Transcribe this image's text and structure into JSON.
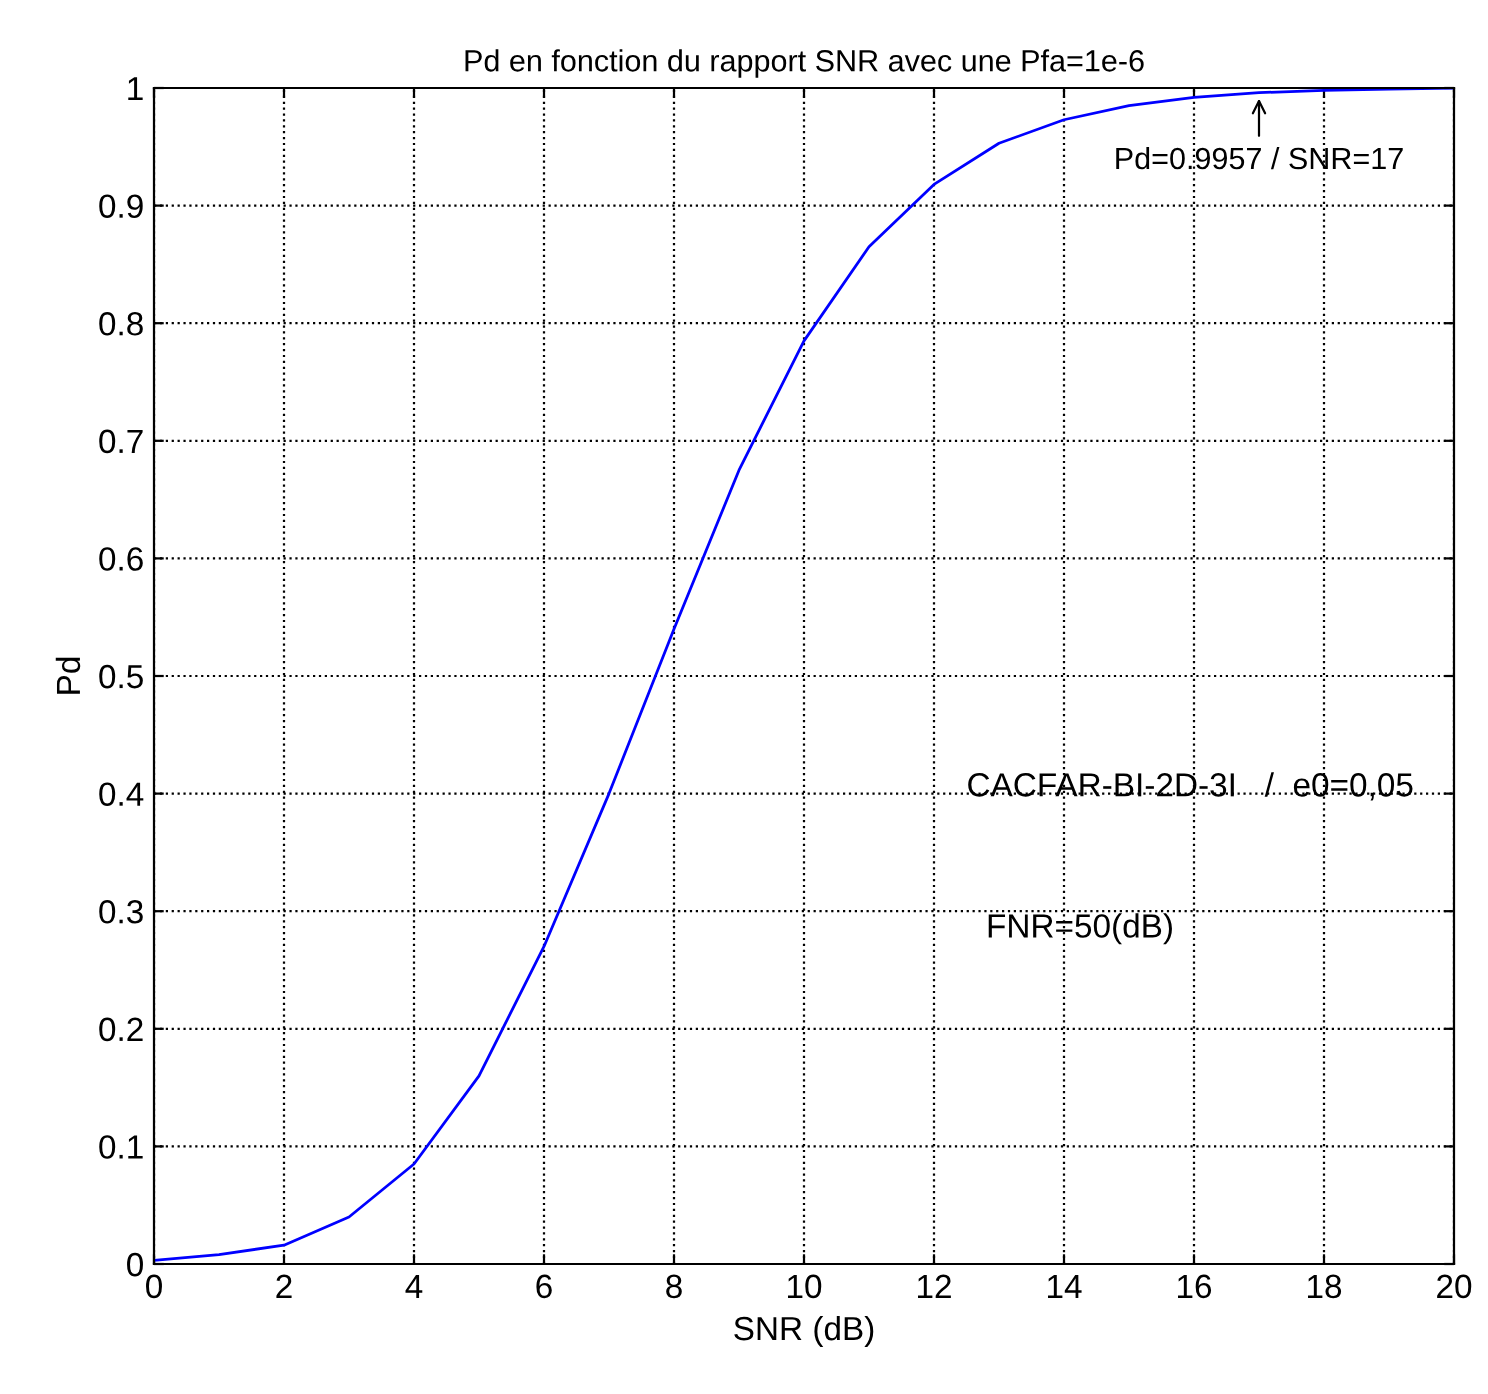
{
  "chart_data": {
    "type": "line",
    "title": "Pd en fonction du rapport SNR avec une Pfa=1e-6",
    "xlabel": "SNR (dB)",
    "ylabel": "Pd",
    "x": [
      0,
      1,
      2,
      3,
      4,
      5,
      6,
      7,
      8,
      9,
      10,
      11,
      12,
      13,
      14,
      15,
      16,
      17,
      18,
      19,
      20
    ],
    "series": [
      {
        "color": "#0000ff",
        "values": [
          0.003,
          0.008,
          0.016,
          0.04,
          0.085,
          0.16,
          0.27,
          0.4,
          0.54,
          0.675,
          0.785,
          0.865,
          0.918,
          0.953,
          0.973,
          0.985,
          0.992,
          0.996,
          0.998,
          0.999,
          1.0
        ]
      }
    ],
    "xlim": [
      0,
      20
    ],
    "xticks": [
      0,
      2,
      4,
      6,
      8,
      10,
      12,
      14,
      16,
      18,
      20
    ],
    "ylim": [
      0,
      1
    ],
    "yticks": [
      0,
      0.1,
      0.2,
      0.3,
      0.4,
      0.5,
      0.6,
      0.7,
      0.8,
      0.9,
      1
    ],
    "grid": true,
    "line_style": "solid",
    "marker": "none",
    "annotations": [
      {
        "text": "Pd=0.9957 / SNR=17",
        "x": 17,
        "y": 0.9957
      },
      "CACFAR-BI-2D-3I   /  e0=0,05",
      "FNR=50(dB)"
    ]
  }
}
